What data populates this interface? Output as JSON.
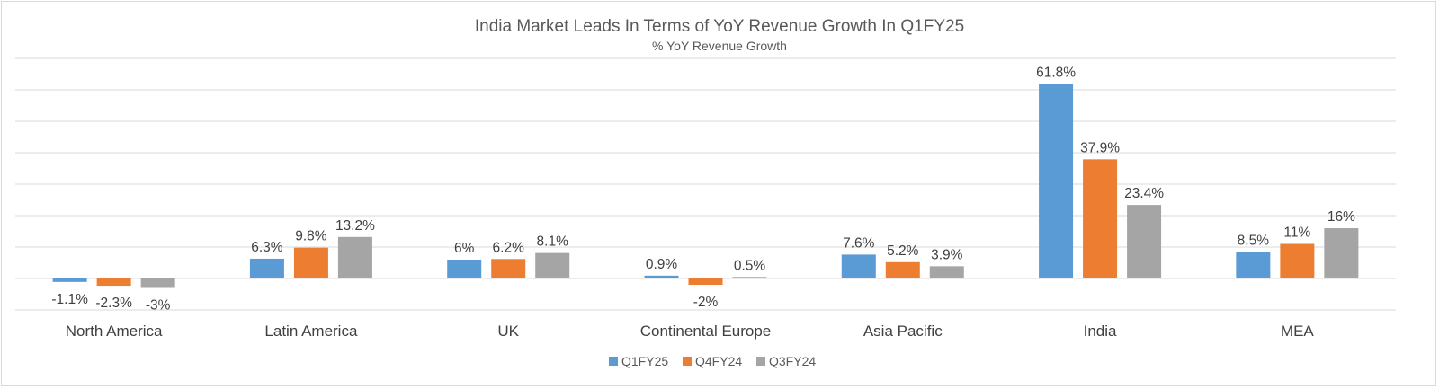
{
  "chart_data": {
    "type": "bar",
    "title": "India Market Leads In Terms of YoY Revenue Growth In Q1FY25",
    "subtitle": "% YoY Revenue Growth",
    "categories": [
      "North America",
      "Latin America",
      "UK",
      "Continental Europe",
      "Asia Pacific",
      "India",
      "MEA"
    ],
    "series": [
      {
        "name": "Q1FY25",
        "color": "#5b9bd5",
        "values": [
          -1.1,
          6.3,
          6,
          0.9,
          7.6,
          61.8,
          8.5
        ],
        "labels": [
          "-1.1%",
          "6.3%",
          "6%",
          "0.9%",
          "7.6%",
          "61.8%",
          "8.5%"
        ]
      },
      {
        "name": "Q4FY24",
        "color": "#ed7d31",
        "values": [
          -2.3,
          9.8,
          6.2,
          -2,
          5.2,
          37.9,
          11
        ],
        "labels": [
          "-2.3%",
          "9.8%",
          "6.2%",
          "-2%",
          "5.2%",
          "37.9%",
          "11%"
        ]
      },
      {
        "name": "Q3FY24",
        "color": "#a5a5a5",
        "values": [
          -3,
          13.2,
          8.1,
          0.5,
          3.9,
          23.4,
          16
        ],
        "labels": [
          "-3%",
          "13.2%",
          "8.1%",
          "0.5%",
          "3.9%",
          "23.4%",
          "16%"
        ]
      }
    ],
    "ylim": [
      -10,
      70
    ],
    "grid": true,
    "legend": "bottom-center"
  }
}
